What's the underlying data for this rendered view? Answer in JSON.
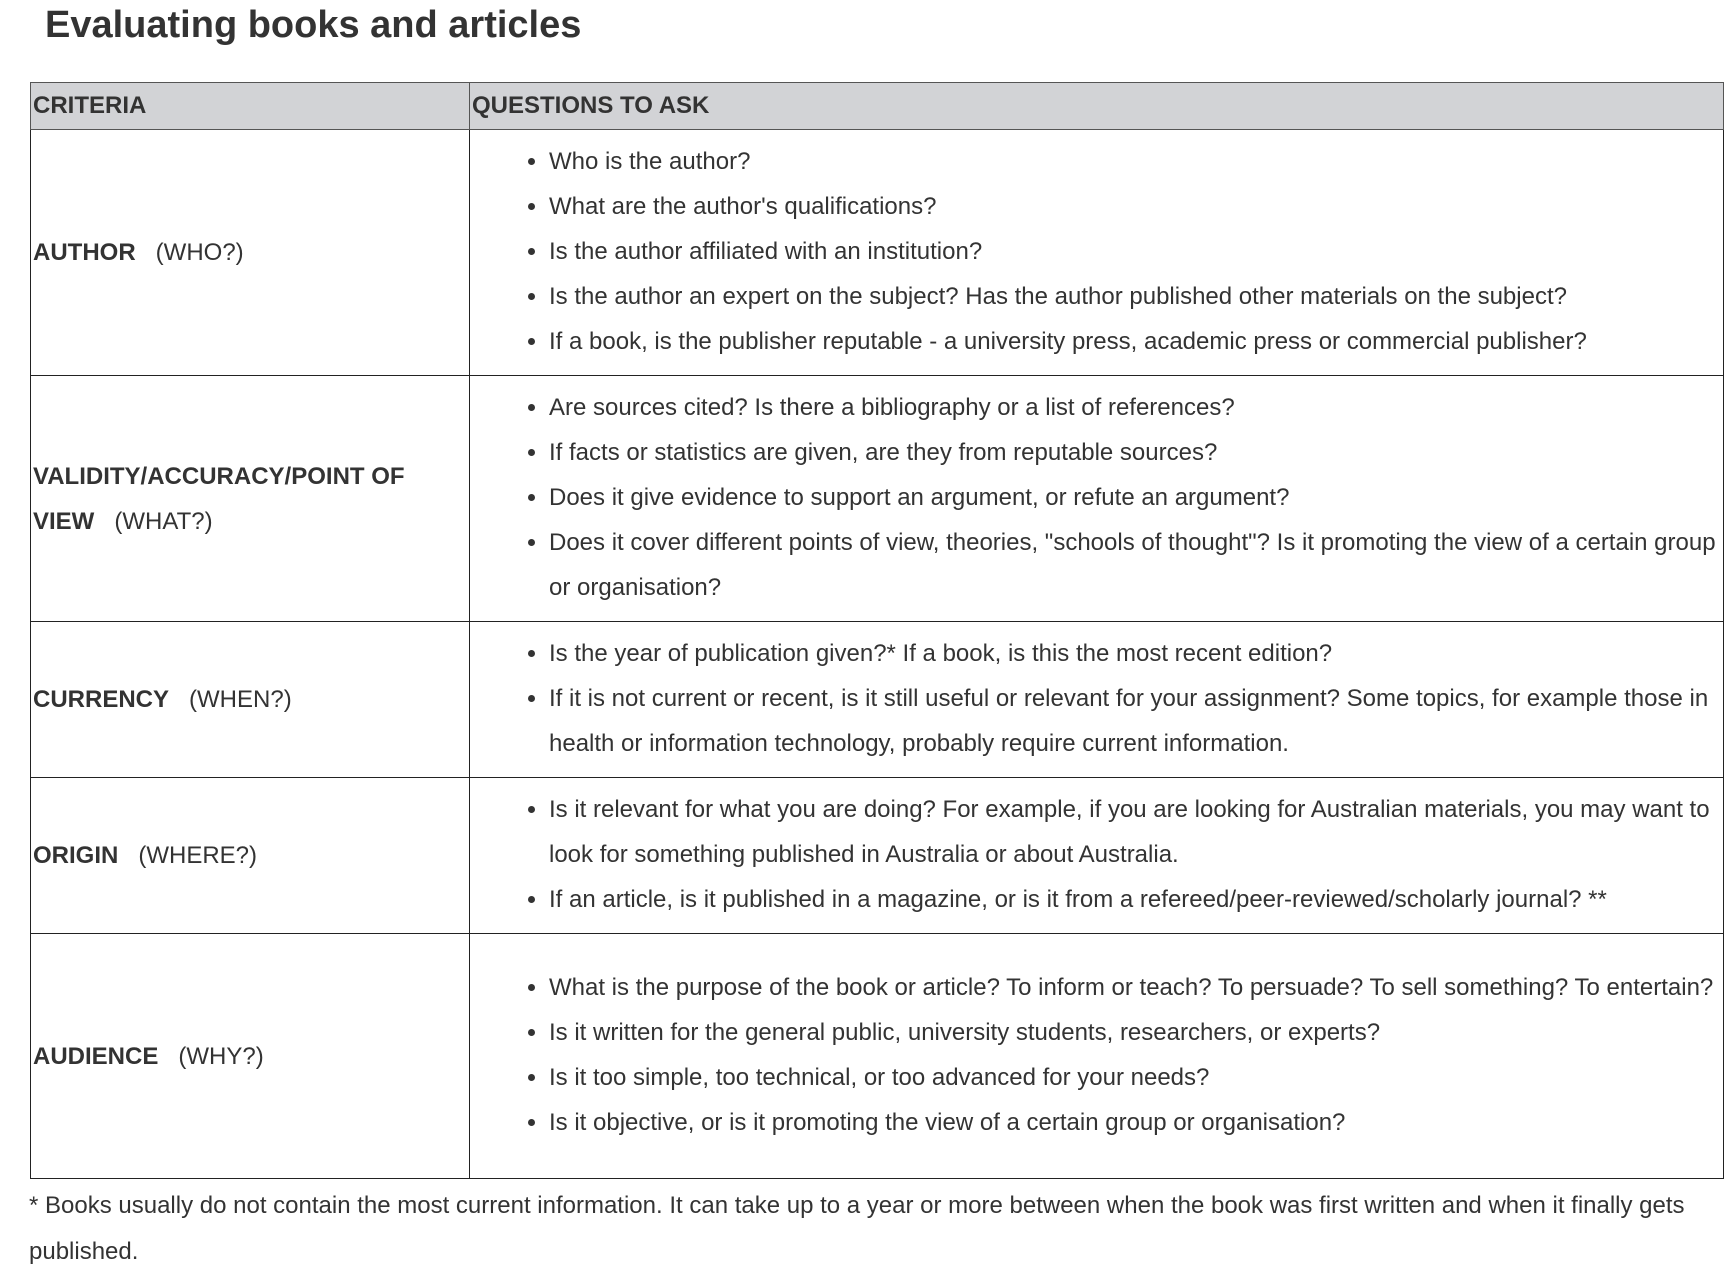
{
  "title": "Evaluating books and articles",
  "table": {
    "headers": [
      "CRITERIA",
      "QUESTIONS TO ASK"
    ],
    "rows": [
      {
        "name": "AUTHOR",
        "qualifier": "(WHO?)",
        "questions": [
          "Who is the author?",
          "What are the author's qualifications?",
          "Is the author affiliated with an institution?",
          "Is the author an expert on the subject?   Has the author published other materials on the subject?",
          "If a book, is the publisher reputable - a university press, academic press or commercial publisher?"
        ]
      },
      {
        "name": "VALIDITY/ACCURACY/POINT OF VIEW",
        "qualifier": "(WHAT?)",
        "questions": [
          "Are sources cited?  Is there a bibliography or a list of references?",
          "If facts or statistics are given, are they from reputable sources?",
          "Does it give evidence to support an argument, or refute an argument?",
          "Does it cover different points of view, theories, \"schools of thought\"? Is it promoting the view of a certain group or organisation?"
        ]
      },
      {
        "name": "CURRENCY",
        "qualifier": "(WHEN?)",
        "questions": [
          "Is the year of publication given?*  If a book, is this the most recent edition?",
          "If it is not current or recent, is it still useful or relevant for your assignment? Some topics, for example those in health or information technology, probably require current information."
        ]
      },
      {
        "name": "ORIGIN",
        "qualifier": "(WHERE?)",
        "questions": [
          "Is it relevant for what you are doing?  For example, if you are looking for Australian materials, you may want to look for something published in Australia or about Australia.",
          "If an article, is it published in a magazine, or is it from a refereed/peer-reviewed/scholarly journal? **"
        ]
      },
      {
        "name": "AUDIENCE",
        "qualifier": "(WHY?)",
        "questions": [
          "What is the purpose of the book or article?  To inform or teach? To persuade? To sell something?  To entertain?",
          "Is it written for the general public, university students, researchers, or experts?",
          "Is it too simple, too technical, or too advanced for your needs?",
          "Is it objective, or is it promoting the view of a certain group or organisation?"
        ]
      }
    ]
  },
  "footnote": "*  Books usually do not contain the most current information.  It can take up to a year or more between when the book was first written and when it finally gets published."
}
